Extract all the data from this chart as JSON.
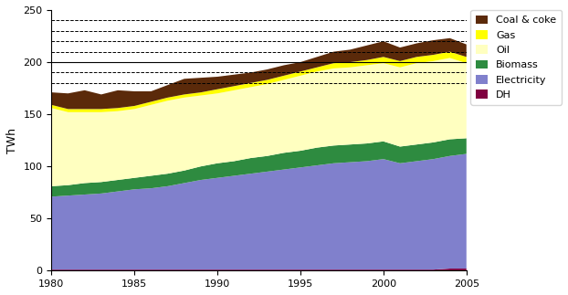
{
  "years": [
    1980,
    1981,
    1982,
    1983,
    1984,
    1985,
    1986,
    1987,
    1988,
    1989,
    1990,
    1991,
    1992,
    1993,
    1994,
    1995,
    1996,
    1997,
    1998,
    1999,
    2000,
    2001,
    2002,
    2003,
    2004,
    2005
  ],
  "dh": [
    1,
    1,
    1,
    1,
    1,
    1,
    1,
    1,
    1,
    1,
    1,
    1,
    1,
    1,
    1,
    1,
    1,
    1,
    1,
    1,
    1,
    1,
    1,
    1,
    2,
    2
  ],
  "electricity": [
    70,
    71,
    72,
    73,
    75,
    77,
    78,
    80,
    83,
    86,
    88,
    90,
    92,
    94,
    96,
    98,
    100,
    102,
    103,
    104,
    106,
    102,
    104,
    106,
    108,
    110
  ],
  "biomass": [
    10,
    10,
    11,
    11,
    11,
    11,
    12,
    12,
    12,
    13,
    14,
    14,
    15,
    15,
    16,
    16,
    17,
    17,
    17,
    17,
    17,
    16,
    16,
    16,
    16,
    15
  ],
  "oil": [
    75,
    70,
    68,
    67,
    66,
    66,
    68,
    70,
    70,
    68,
    67,
    68,
    68,
    69,
    70,
    72,
    73,
    74,
    74,
    75,
    75,
    76,
    78,
    78,
    78,
    72
  ],
  "gas": [
    3,
    3,
    3,
    3,
    3,
    3,
    3,
    3,
    3,
    3,
    4,
    4,
    4,
    4,
    4,
    4,
    4,
    5,
    5,
    5,
    6,
    6,
    6,
    6,
    6,
    6
  ],
  "coal_coke": [
    12,
    15,
    18,
    14,
    17,
    14,
    10,
    12,
    15,
    14,
    12,
    11,
    10,
    10,
    10,
    9,
    10,
    11,
    12,
    14,
    15,
    13,
    13,
    14,
    13,
    12
  ],
  "colors": {
    "dh": "#800040",
    "electricity": "#8080CC",
    "biomass": "#2E8B40",
    "oil": "#FFFFC0",
    "gas": "#FFFF00",
    "coal_coke": "#5B2A0A"
  },
  "ylabel": "TWh",
  "xlim": [
    1980,
    2005
  ],
  "ylim": [
    0,
    250
  ],
  "yticks": [
    0,
    50,
    100,
    150,
    200,
    250
  ],
  "xticks": [
    1980,
    1985,
    1990,
    1995,
    2000,
    2005
  ],
  "solid_gridlines": [
    200
  ],
  "dashed_gridlines": [
    180,
    190,
    210,
    220,
    230,
    240
  ],
  "figsize": [
    6.22,
    3.23
  ],
  "dpi": 100
}
